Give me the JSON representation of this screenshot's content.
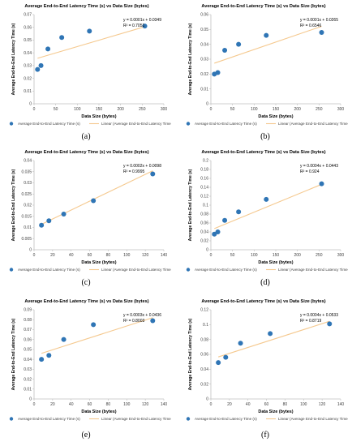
{
  "colors": {
    "point": "#2f75b5",
    "trend": "#f5c98f",
    "axis": "#bfbfbf",
    "text": "#000000"
  },
  "chart_data": [
    {
      "id": "a",
      "type": "scatter",
      "title": "Average End-to-End Latency Time (s) vs Data Size (bytes)",
      "xlabel": "Data Size (bytes)",
      "ylabel": "Average End-to-End Latency Time (s)",
      "xlim": [
        0,
        300
      ],
      "ylim": [
        0,
        0.07
      ],
      "xticks": [
        "0",
        "50",
        "100",
        "150",
        "200",
        "250",
        "300"
      ],
      "yticks": [
        "0",
        "0.01",
        "0.02",
        "0.03",
        "0.04",
        "0.05",
        "0.06",
        "0.07"
      ],
      "x": [
        8,
        16,
        32,
        64,
        128,
        256
      ],
      "y": [
        0.027,
        0.03,
        0.043,
        0.052,
        0.057,
        0.061
      ],
      "trend": {
        "slope": 0.0001,
        "intercept": 0.0349
      },
      "equation": "y = 0.0001x + 0.0349",
      "r2": "R² = 0.7051",
      "legend": [
        "Average End-to-End Latency Time (s)",
        "Linear (Average End-to-End Latency Time (s))"
      ],
      "caption": "(a)"
    },
    {
      "id": "b",
      "type": "scatter",
      "title": "Average End-to-End Latency Time (s) vs Data Size (bytes)",
      "xlabel": "Data Size (bytes)",
      "ylabel": "Average End-to-End Latency Time (s)",
      "xlim": [
        0,
        300
      ],
      "ylim": [
        0,
        0.06
      ],
      "xticks": [
        "0",
        "50",
        "100",
        "150",
        "200",
        "250",
        "300"
      ],
      "yticks": [
        "0",
        "0.01",
        "0.02",
        "0.03",
        "0.04",
        "0.05",
        "0.06"
      ],
      "x": [
        8,
        16,
        32,
        64,
        128,
        256
      ],
      "y": [
        0.02,
        0.021,
        0.036,
        0.04,
        0.046,
        0.048
      ],
      "trend": {
        "slope": 0.0001,
        "intercept": 0.0265
      },
      "equation": "y = 0.0001x + 0.0265",
      "r2": "R² = 0.6546",
      "legend": [
        "Average End-to-End Latency Time (s)",
        "Linear (Average End-to-End Latency Time (s))"
      ],
      "caption": "(b)"
    },
    {
      "id": "c",
      "type": "scatter",
      "title": "Average End-to-End Latency Time (s) vs Data Size (bytes)",
      "xlabel": "Data Size (bytes)",
      "ylabel": "Average End-to-End Latency Time (s)",
      "xlim": [
        0,
        140
      ],
      "ylim": [
        0,
        0.04
      ],
      "xticks": [
        "0",
        "20",
        "40",
        "60",
        "80",
        "100",
        "120",
        "140"
      ],
      "yticks": [
        "0",
        "0.005",
        "0.01",
        "0.015",
        "0.02",
        "0.025",
        "0.03",
        "0.035",
        "0.04"
      ],
      "x": [
        8,
        16,
        32,
        64,
        128
      ],
      "y": [
        0.011,
        0.013,
        0.016,
        0.022,
        0.034
      ],
      "trend": {
        "slope": 0.0002,
        "intercept": 0.0098
      },
      "equation": "y = 0.0002x + 0.0098",
      "r2": "R² = 0.9995",
      "legend": [
        "Average End-to-End Latency Time (s)",
        "Linear (Average End-to-End Latency Time (s))"
      ],
      "caption": "(c)"
    },
    {
      "id": "d",
      "type": "scatter",
      "title": "Average End-to-End Latency Time (s) vs Data Size (bytes)",
      "xlabel": "Data Size (bytes)",
      "ylabel": "Average End-to-End Latency Time (s)",
      "xlim": [
        0,
        300
      ],
      "ylim": [
        0,
        0.2
      ],
      "xticks": [
        "0",
        "50",
        "100",
        "150",
        "200",
        "250",
        "300"
      ],
      "yticks": [
        "0",
        "0.02",
        "0.04",
        "0.06",
        "0.08",
        "0.1",
        "0.12",
        "0.14",
        "0.16",
        "0.18",
        "0.2"
      ],
      "x": [
        8,
        16,
        32,
        64,
        128,
        256
      ],
      "y": [
        0.035,
        0.04,
        0.066,
        0.085,
        0.113,
        0.148
      ],
      "trend": {
        "slope": 0.0004,
        "intercept": 0.0443
      },
      "equation": "y = 0.0004x + 0.0443",
      "r2": "R² = 0.924",
      "legend": [
        "Average End-to-End Latency Time (s)",
        "Linear (Average End-to-End Latency Time (s))"
      ],
      "caption": "(d)"
    },
    {
      "id": "e",
      "type": "scatter",
      "title": "Average End-to-End Latency Time (s) vs Data Size (bytes)",
      "xlabel": "Data Size (bytes)",
      "ylabel": "Average End-to-End Latency Time (s)",
      "xlim": [
        0,
        140
      ],
      "ylim": [
        0,
        0.09
      ],
      "xticks": [
        "0",
        "20",
        "40",
        "60",
        "80",
        "100",
        "120",
        "140"
      ],
      "yticks": [
        "0",
        "0.01",
        "0.02",
        "0.03",
        "0.04",
        "0.05",
        "0.06",
        "0.07",
        "0.08",
        "0.09"
      ],
      "x": [
        8,
        16,
        32,
        64,
        128
      ],
      "y": [
        0.04,
        0.044,
        0.06,
        0.075,
        0.079
      ],
      "trend": {
        "slope": 0.0003,
        "intercept": 0.0436
      },
      "equation": "y = 0.0003x + 0.0436",
      "r2": "R² = 0.8003",
      "legend": [
        "Average End-to-End Latency Time (s)",
        "Linear (Average End-to-End Latency Time (s))"
      ],
      "caption": "(e)"
    },
    {
      "id": "f",
      "type": "scatter",
      "title": "Average End-to-End Latency Time (s) vs Data Size (bytes)",
      "xlabel": "Data Size (bytes)",
      "ylabel": "Average End-to-End Latency Time (s)",
      "xlim": [
        0,
        140
      ],
      "ylim": [
        0,
        0.12
      ],
      "xticks": [
        "0",
        "20",
        "40",
        "60",
        "80",
        "100",
        "120",
        "140"
      ],
      "yticks": [
        "0",
        "0.02",
        "0.04",
        "0.06",
        "0.08",
        "0.1",
        "0.12"
      ],
      "x": [
        8,
        16,
        32,
        64,
        128
      ],
      "y": [
        0.049,
        0.056,
        0.075,
        0.088,
        0.101
      ],
      "trend": {
        "slope": 0.0004,
        "intercept": 0.0533
      },
      "equation": "y = 0.0004x + 0.0533",
      "r2": "R² = 0.8719",
      "legend": [
        "Average End-to-End Latency Time (s)",
        "Linear (Average End-to-End Latency Time (s))"
      ],
      "caption": "(f)"
    }
  ]
}
